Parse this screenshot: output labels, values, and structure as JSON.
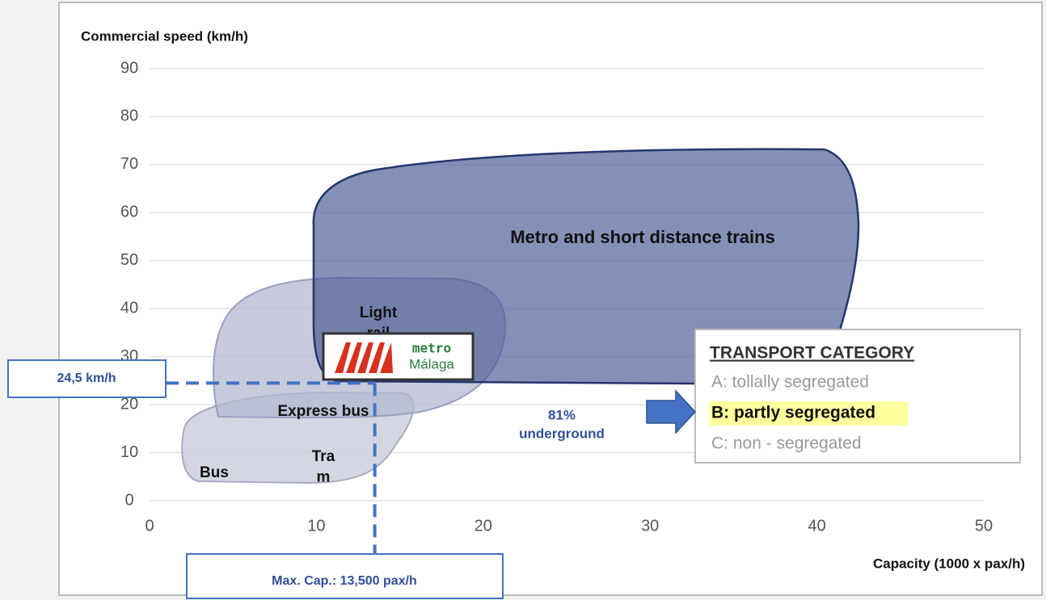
{
  "chart_data": {
    "type": "region",
    "y_axis_label": "Commercial speed (km/h)",
    "x_axis_label": "Capacity (1000 x pax/h)",
    "xlim": [
      0,
      50
    ],
    "xticks": [
      0,
      10,
      20,
      30,
      40,
      50
    ],
    "ylim": [
      0,
      90
    ],
    "yticks": [
      0,
      10,
      20,
      30,
      40,
      50,
      60,
      70,
      80,
      90
    ],
    "grid": true,
    "annotations": [
      {
        "lines": [
          "Metro and short distance trains"
        ]
      },
      {
        "lines": [
          "Light",
          "rail"
        ]
      },
      {
        "lines": [
          "Express bus"
        ]
      },
      {
        "lines": [
          "Tra",
          "m"
        ]
      },
      {
        "lines": [
          "Bus"
        ]
      },
      {
        "lines": [
          "81%",
          "underground"
        ]
      }
    ],
    "logo": {
      "line1": "metro",
      "line2": "Málaga"
    },
    "reference": {
      "x": 13.5,
      "y": 24.5,
      "y_label": "24,5 km/h",
      "x_label": "Max. Cap.: 13,500 pax/h",
      "color": "#4472c4"
    },
    "legend": {
      "title": "TRANSPORT CATEGORY",
      "items": [
        "A: tollally segregated",
        "B: partly segregated",
        "C: non - segregated"
      ],
      "highlight": 1
    }
  }
}
